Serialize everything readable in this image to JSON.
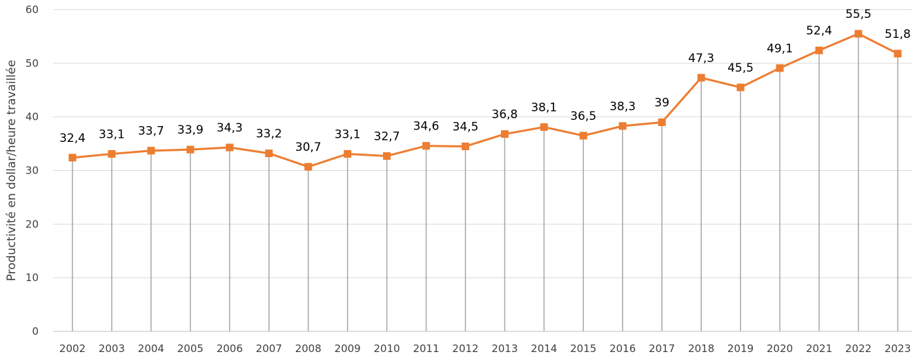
{
  "chart_data": {
    "type": "line",
    "title": "",
    "xlabel": "",
    "ylabel": "Productivité  en dollar/heure travaillée",
    "x": [
      "2002",
      "2003",
      "2004",
      "2005",
      "2006",
      "2007",
      "2008",
      "2009",
      "2010",
      "2011",
      "2012",
      "2013",
      "2014",
      "2015",
      "2016",
      "2017",
      "2018",
      "2019",
      "2020",
      "2021",
      "2022",
      "2023"
    ],
    "series": [
      {
        "values": [
          32.4,
          33.1,
          33.7,
          33.9,
          34.3,
          33.2,
          30.7,
          33.1,
          32.7,
          34.6,
          34.5,
          36.8,
          38.1,
          36.5,
          38.3,
          39,
          47.3,
          45.5,
          49.1,
          52.4,
          55.5,
          51.8
        ],
        "labels": [
          "32,4",
          "33,1",
          "33,7",
          "33,9",
          "34,3",
          "33,2",
          "30,7",
          "33,1",
          "32,7",
          "34,6",
          "34,5",
          "36,8",
          "38,1",
          "36,5",
          "38,3",
          "39",
          "47,3",
          "45,5",
          "49,1",
          "52,4",
          "55,5",
          "51,8"
        ],
        "color": "#ED7D31",
        "marker": "square"
      }
    ],
    "ylim": [
      0,
      60
    ],
    "yticks": [
      0,
      10,
      20,
      30,
      40,
      50,
      60
    ],
    "grid": true,
    "drop_lines": true,
    "legend": "none",
    "colors": {
      "grid": "#D9D9D9",
      "drop_line": "#A6A6A6",
      "axis": "#BFBFBF",
      "tick_text": "#404040",
      "label_text": "#000000"
    }
  }
}
